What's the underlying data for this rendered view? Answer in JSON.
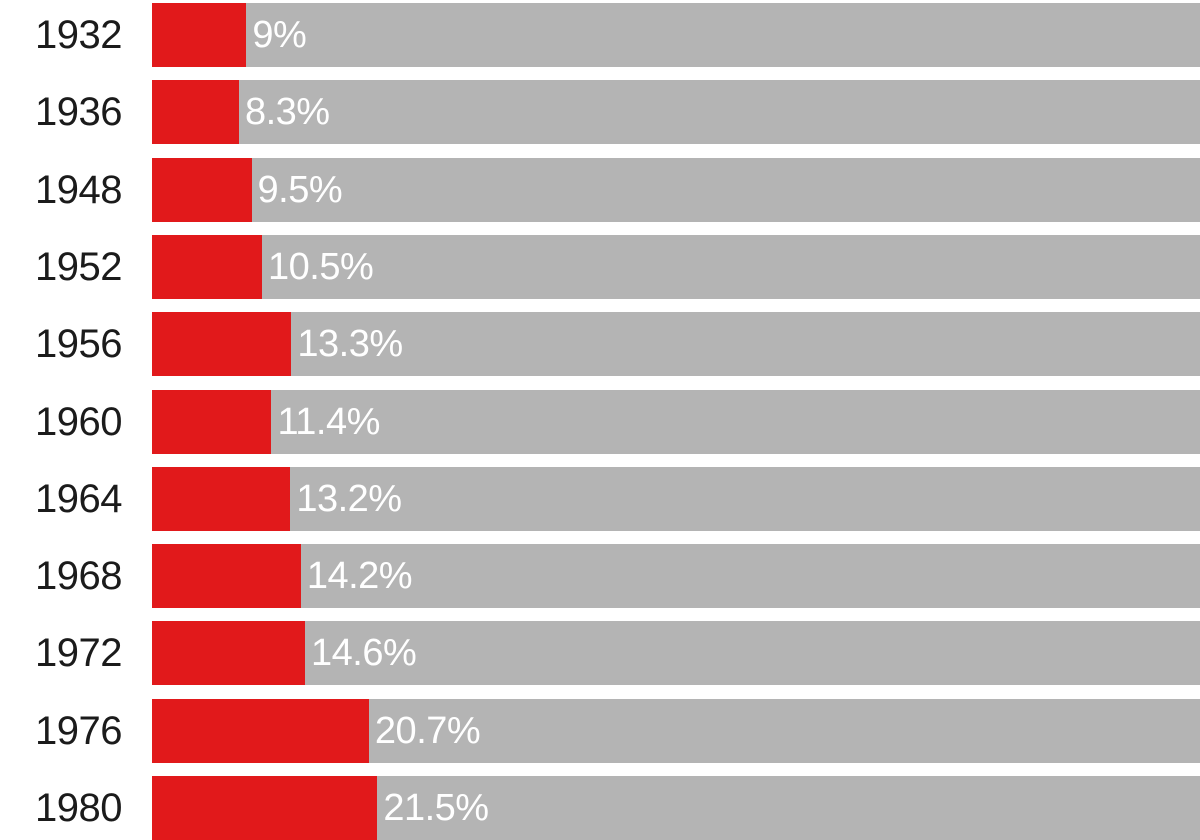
{
  "chart_data": {
    "type": "bar",
    "orientation": "horizontal",
    "categories": [
      "1932",
      "1936",
      "1948",
      "1952",
      "1956",
      "1960",
      "1964",
      "1968",
      "1972",
      "1976",
      "1980"
    ],
    "values": [
      9,
      8.3,
      9.5,
      10.5,
      13.3,
      11.4,
      13.2,
      14.2,
      14.6,
      20.7,
      21.5
    ],
    "value_labels": [
      "9%",
      "8.3%",
      "9.5%",
      "10.5%",
      "13.3%",
      "11.4%",
      "13.2%",
      "14.2%",
      "14.6%",
      "20.7%",
      "21.5%"
    ],
    "xlim": [
      0,
      100
    ],
    "unit": "%",
    "colors": {
      "bar": "#e1191b",
      "track": "#b4b4b4",
      "label": "#ffffff",
      "category_text": "#1b1b1b"
    },
    "grid": false,
    "legend": "none"
  }
}
